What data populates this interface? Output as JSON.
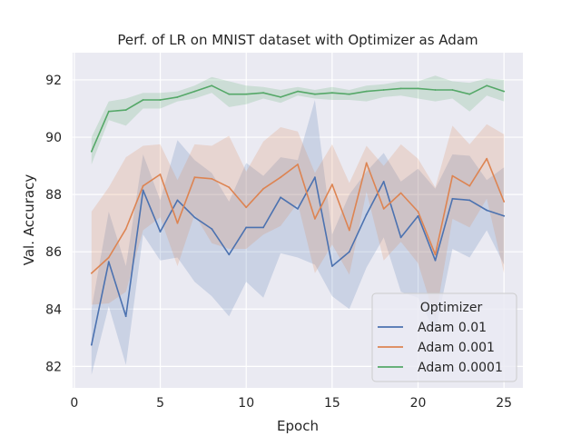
{
  "chart_data": {
    "type": "line",
    "title": "Perf. of LR on MNIST dataset with Optimizer as Adam",
    "xlabel": "Epoch",
    "ylabel": "Val. Accuracy",
    "xlim": [
      -0.1,
      26.1
    ],
    "ylim": [
      81.25,
      92.95
    ],
    "xticks": [
      0,
      5,
      10,
      15,
      20,
      25
    ],
    "yticks": [
      82,
      84,
      86,
      88,
      90,
      92
    ],
    "grid": true,
    "legend": {
      "title": "Optimizer",
      "placement": "bottom-right"
    },
    "x": [
      1,
      2,
      3,
      4,
      5,
      6,
      7,
      8,
      9,
      10,
      11,
      12,
      13,
      14,
      15,
      16,
      17,
      18,
      19,
      20,
      21,
      22,
      23,
      24,
      25
    ],
    "series": [
      {
        "name": "Adam 0.01",
        "color": "#4c72b0",
        "values": [
          82.75,
          85.65,
          83.75,
          88.15,
          86.7,
          87.8,
          87.2,
          86.8,
          85.9,
          86.85,
          86.85,
          87.9,
          87.5,
          88.6,
          85.5,
          86.0,
          87.3,
          88.45,
          86.5,
          87.25,
          85.7,
          87.85,
          87.8,
          87.45,
          87.25
        ],
        "lower": [
          81.7,
          84.1,
          82.05,
          86.6,
          85.7,
          85.8,
          84.95,
          84.45,
          83.75,
          84.95,
          84.4,
          85.95,
          85.8,
          85.55,
          84.45,
          84.0,
          85.45,
          86.5,
          84.6,
          84.4,
          83.2,
          86.1,
          85.8,
          86.75,
          85.55
        ],
        "upper": [
          84.0,
          87.4,
          85.5,
          89.4,
          87.8,
          89.9,
          89.2,
          88.75,
          87.75,
          89.1,
          88.65,
          89.3,
          89.2,
          91.3,
          86.6,
          88.0,
          88.8,
          89.45,
          88.45,
          88.9,
          88.2,
          89.4,
          89.35,
          88.5,
          88.95
        ]
      },
      {
        "name": "Adam 0.001",
        "color": "#dd8452",
        "values": [
          85.25,
          85.8,
          86.8,
          88.3,
          88.7,
          87.0,
          88.6,
          88.55,
          88.25,
          87.55,
          88.2,
          88.6,
          89.05,
          87.15,
          88.35,
          86.75,
          89.1,
          87.5,
          88.05,
          87.4,
          85.9,
          88.65,
          88.3,
          89.25,
          87.75
        ],
        "lower": [
          84.15,
          84.2,
          84.6,
          86.75,
          87.2,
          85.5,
          87.3,
          86.3,
          86.1,
          86.1,
          86.6,
          86.9,
          87.7,
          85.25,
          86.25,
          85.2,
          88.1,
          85.7,
          86.35,
          85.6,
          83.65,
          87.15,
          86.85,
          87.85,
          85.25
        ],
        "upper": [
          87.4,
          88.25,
          89.3,
          89.7,
          89.75,
          88.5,
          89.75,
          89.7,
          90.05,
          88.8,
          89.85,
          90.35,
          90.2,
          88.75,
          89.75,
          88.4,
          89.7,
          89.0,
          89.75,
          89.25,
          88.25,
          90.4,
          89.75,
          90.45,
          90.1
        ]
      },
      {
        "name": "Adam 0.0001",
        "color": "#55a868",
        "values": [
          89.5,
          90.9,
          90.95,
          91.3,
          91.3,
          91.4,
          91.6,
          91.8,
          91.5,
          91.5,
          91.55,
          91.4,
          91.6,
          91.5,
          91.55,
          91.5,
          91.6,
          91.65,
          91.7,
          91.7,
          91.65,
          91.65,
          91.5,
          91.8,
          91.6
        ],
        "lower": [
          89.05,
          90.6,
          90.4,
          91.0,
          91.0,
          91.25,
          91.35,
          91.55,
          91.05,
          91.15,
          91.35,
          91.2,
          91.45,
          91.35,
          91.3,
          91.3,
          91.25,
          91.4,
          91.45,
          91.35,
          91.25,
          91.35,
          90.9,
          91.45,
          91.25
        ],
        "upper": [
          90.0,
          91.25,
          91.35,
          91.55,
          91.55,
          91.6,
          91.8,
          92.1,
          91.95,
          91.8,
          91.75,
          91.65,
          91.75,
          91.65,
          91.75,
          91.65,
          91.8,
          91.85,
          91.95,
          91.95,
          92.15,
          91.95,
          91.9,
          92.05,
          92.0
        ]
      }
    ]
  }
}
